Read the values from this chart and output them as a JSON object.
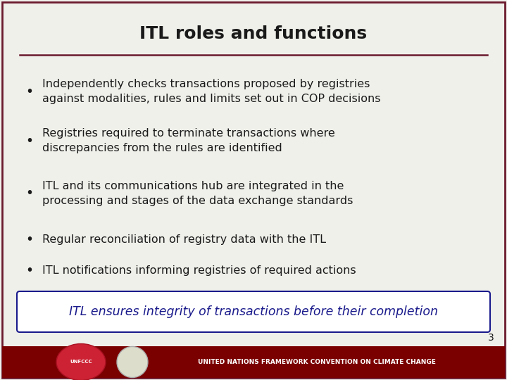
{
  "title": "ITL roles and functions",
  "title_color": "#1a1a1a",
  "title_fontsize": 18,
  "title_line_color": "#6b1a2e",
  "background_color": "#f0f0eb",
  "border_color": "#6b1a2e",
  "bullet_points": [
    "Independently checks transactions proposed by registries\nagainst modalities, rules and limits set out in COP decisions",
    "Registries required to terminate transactions where\ndiscrepancies from the rules are identified",
    "ITL and its communications hub are integrated in the\nprocessing and stages of the data exchange standards",
    "Regular reconciliation of registry data with the ITL",
    "ITL notifications informing registries of required actions"
  ],
  "bullet_color": "#1a1a1a",
  "bullet_fontsize": 11.5,
  "callout_text": "ITL ensures integrity of transactions before their completion",
  "callout_color": "#1a1a8c",
  "callout_fontsize": 12.5,
  "callout_box_color": "#ffffff",
  "callout_border_color": "#1a1a8c",
  "footer_bar_color": "#7a0000",
  "footer_text": "UNITED NATIONS FRAMEWORK CONVENTION ON CLIMATE CHANGE",
  "footer_text_color": "#ffffff",
  "page_number": "3",
  "page_number_color": "#1a1a1a"
}
